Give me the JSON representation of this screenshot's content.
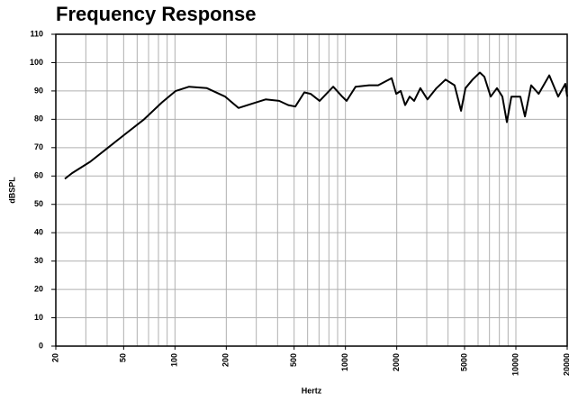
{
  "chart_data": {
    "type": "line",
    "title": "Frequency Response",
    "x_label": "Hertz",
    "y_label": "dBSPL",
    "x_scale": "log",
    "grid": true,
    "xlim": [
      20,
      20000
    ],
    "ylim": [
      0,
      110
    ],
    "xticks": [
      20,
      50,
      100,
      200,
      500,
      1000,
      2000,
      5000,
      10000,
      20000
    ],
    "xminor_ticks": [
      30,
      40,
      60,
      70,
      80,
      90,
      300,
      400,
      600,
      700,
      800,
      900,
      3000,
      4000,
      6000,
      7000,
      8000,
      9000
    ],
    "yticks": [
      0,
      10,
      20,
      30,
      40,
      50,
      60,
      70,
      80,
      90,
      100,
      110
    ],
    "series": [
      {
        "color": "#000000",
        "x": [
          22.6,
          24.9,
          31.8,
          40.5,
          51.6,
          65.9,
          84,
          101,
          121,
          154,
          197,
          236,
          283,
          340,
          408,
          462,
          508,
          574,
          625,
          706,
          848,
          958,
          1016,
          1148,
          1378,
          1556,
          1867,
          1986,
          2110,
          2240,
          2380,
          2530,
          2750,
          3030,
          3420,
          3870,
          4370,
          4770,
          5060,
          5570,
          6150,
          6530,
          7110,
          7750,
          8330,
          8850,
          9410,
          10620,
          11300,
          12300,
          13600,
          15700,
          17700,
          19500,
          20000
        ],
        "values": [
          59,
          61,
          65,
          70,
          75,
          80,
          86,
          90,
          91.5,
          91,
          88,
          84,
          85.5,
          87,
          86.5,
          85,
          84.5,
          89.5,
          89,
          86.5,
          91.5,
          88,
          86.5,
          91.5,
          92,
          92,
          94.5,
          89,
          90,
          85,
          88,
          86.5,
          91,
          87,
          91,
          94,
          92,
          83,
          91,
          94,
          96.5,
          95,
          88,
          91,
          88,
          79,
          88,
          88,
          81,
          92,
          89,
          95.5,
          88,
          92.5,
          88
        ]
      }
    ]
  }
}
